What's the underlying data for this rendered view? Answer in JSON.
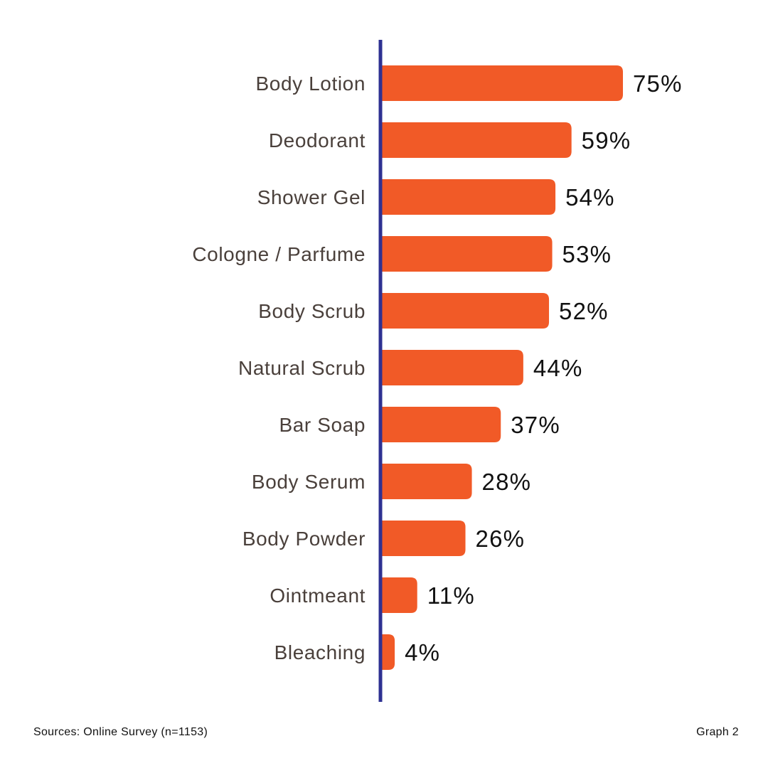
{
  "chart_data": {
    "type": "bar",
    "orientation": "horizontal",
    "categories": [
      "Body Lotion",
      "Deodorant",
      "Shower Gel",
      "Cologne / Parfume",
      "Body Scrub",
      "Natural Scrub",
      "Bar Soap",
      "Body Serum",
      "Body Powder",
      "Ointmeant",
      "Bleaching"
    ],
    "values": [
      75,
      59,
      54,
      53,
      52,
      44,
      37,
      28,
      26,
      11,
      4
    ],
    "value_labels": [
      "75%",
      "59%",
      "54%",
      "53%",
      "52%",
      "44%",
      "37%",
      "28%",
      "26%",
      "11%",
      "4%"
    ],
    "unit": "%",
    "xlim": [
      0,
      100
    ],
    "grid": false,
    "legend": "none"
  },
  "colors": {
    "bar": "#F15A27",
    "axis": "#2E3192",
    "category_text": "#4A403B",
    "value_text": "#111111"
  },
  "footer": {
    "source": "Sources: Online Survey (n=1153)",
    "graph_label": "Graph 2"
  }
}
